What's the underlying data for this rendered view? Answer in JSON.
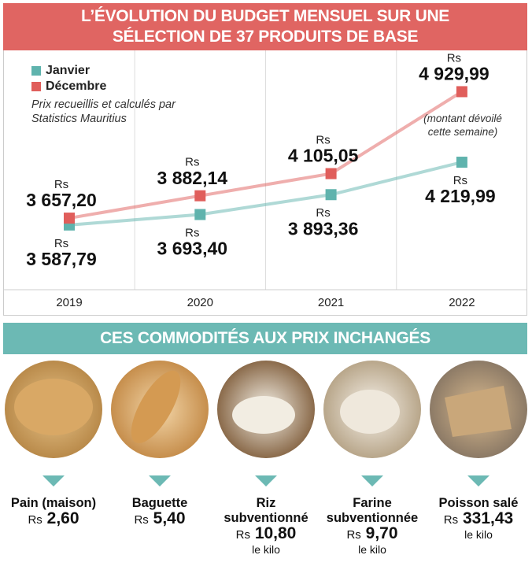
{
  "chart_data": {
    "type": "line",
    "title": "L’ÉVOLUTION DU BUDGET MENSUEL SUR UNE SÉLECTION DE 37 PRODUITS DE BASE",
    "note": "Prix recueillis et calculés par Statistics Mauritius",
    "currency": "Rs",
    "categories": [
      "2019",
      "2020",
      "2021",
      "2022"
    ],
    "series": [
      {
        "name": "Janvier",
        "color": "#5fb3ad",
        "values": [
          3587.79,
          3693.4,
          3893.36,
          4219.99
        ],
        "value_labels": [
          "3 587,79",
          "3 693,40",
          "3 893,36",
          "4 219,99"
        ]
      },
      {
        "name": "Décembre",
        "color": "#e05e5b",
        "values": [
          3657.2,
          3882.14,
          4105.05,
          4929.99
        ],
        "value_labels": [
          "3 657,20",
          "3 882,14",
          "4 105,05",
          "4 929,99"
        ]
      }
    ],
    "annotation": "(montant dévoilé cette semaine)",
    "ylim": [
      3000,
      5100
    ]
  },
  "section": {
    "title": "CES COMMODITÉS AUX PRIX INCHANGÉS",
    "products": [
      {
        "name": "Pain (maison)",
        "currency": "Rs",
        "price": "2,60"
      },
      {
        "name": "Baguette",
        "currency": "Rs",
        "price": "5,40"
      },
      {
        "name": "Riz subventionné",
        "currency": "Rs",
        "price": "10,80",
        "unit": "le kilo"
      },
      {
        "name": "Farine subventionnée",
        "currency": "Rs",
        "price": "9,70",
        "unit": "le kilo"
      },
      {
        "name": "Poisson salé",
        "currency": "Rs",
        "price": "331,43",
        "unit": "le kilo"
      }
    ]
  }
}
